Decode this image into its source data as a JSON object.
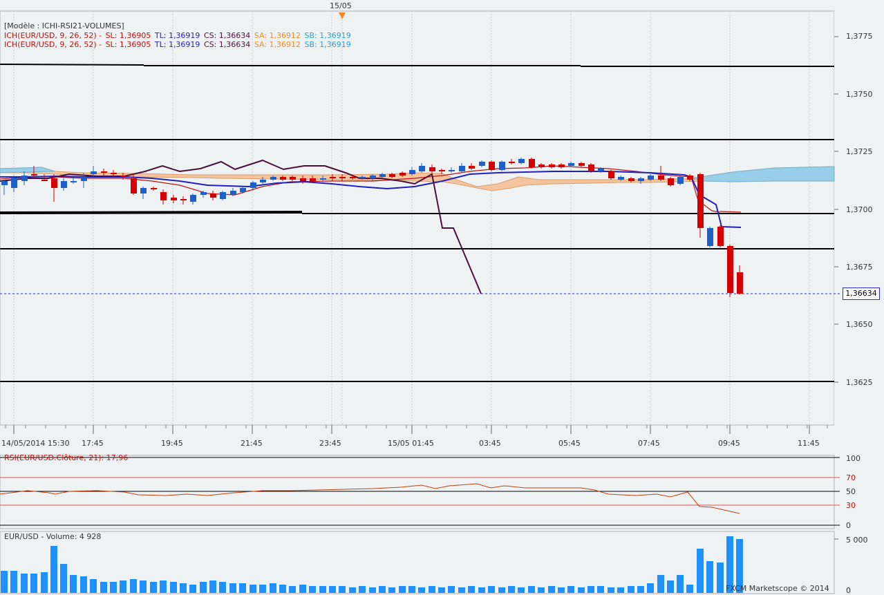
{
  "top_marker": {
    "label": "15/05"
  },
  "main_legend": {
    "line1": "[Modèle : ICHI-RSI21-VOLUMES]",
    "line2": {
      "ich": "ICH(EUR/USD, 9, 26, 52) -",
      "sl": "SL: 1,36905",
      "tl": "TL: 1,36919",
      "cs": "CS: 1,36634",
      "sa": "SA: 1,36912",
      "sb": "SB: 1,36919"
    },
    "line3": {
      "ich": "ICH(EUR/USD, 9, 26, 52) -",
      "sl": "SL: 1,36905",
      "tl": "TL: 1,36919",
      "cs": "CS: 1,36634",
      "sa": "SA: 1,36912",
      "sb": "SB: 1,36919"
    }
  },
  "price_axis": {
    "labels": [
      "1,3775",
      "1,3750",
      "1,3725",
      "1,3700",
      "1,3675",
      "1,3650",
      "1,3625"
    ],
    "current": "1,36634"
  },
  "time_axis": {
    "labels": [
      "14/05/2014 15:30",
      "17:45",
      "19:45",
      "21:45",
      "23:45",
      "15/05 01:45",
      "03:45",
      "05:45",
      "07:45",
      "09:45",
      "11:45"
    ]
  },
  "rsi_panel": {
    "legend": "RSI(EUR/USD.Clôture, 21): 17,96",
    "levels": [
      "100",
      "70",
      "50",
      "30",
      "0"
    ]
  },
  "volume_panel": {
    "legend": "EUR/USD - Volume: 4 928",
    "levels": [
      "5 000",
      "0"
    ]
  },
  "footer": {
    "brand": "FXCM Marketscope © 2014"
  },
  "colors": {
    "bull": "#1f5fc8",
    "bear": "#d40000",
    "kumo_up": "#8fd0f0",
    "kumo_down": "#f4c094",
    "chikou": "#4b0e3c",
    "tenkan": "#2020c0",
    "kijun": "#c01010",
    "volume": "#1e90ff"
  }
}
